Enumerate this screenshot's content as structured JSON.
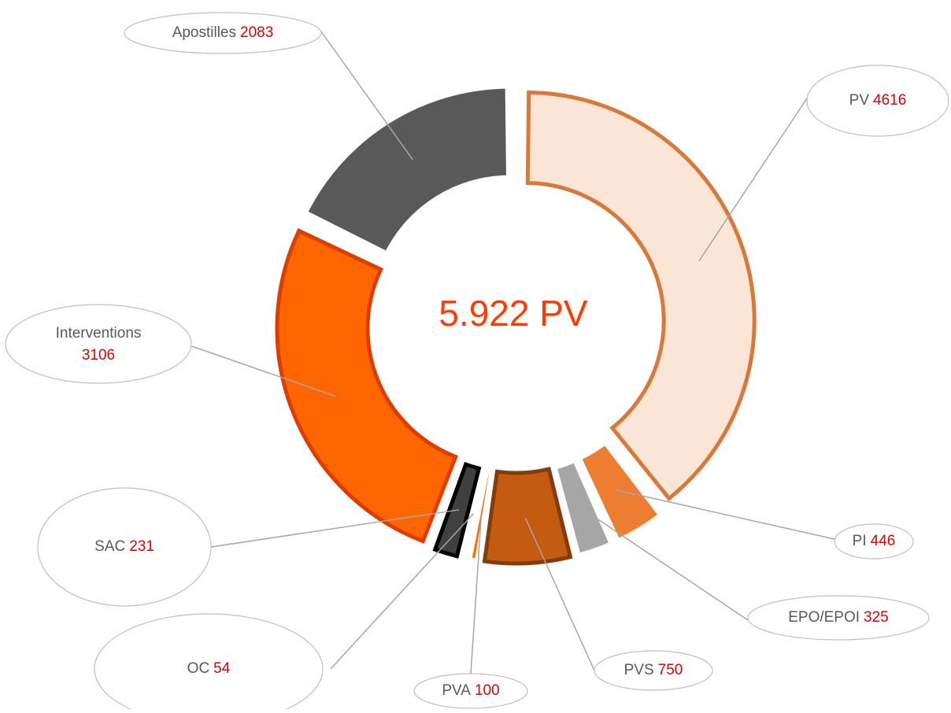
{
  "chart_data": {
    "type": "donut",
    "center_text": "5.922 PV",
    "categories": [
      "PV",
      "PI",
      "EPO/EPOI",
      "PVS",
      "PVA",
      "OC",
      "SAC",
      "Interventions",
      "Apostilles"
    ],
    "values": [
      4616,
      446,
      325,
      750,
      100,
      54,
      231,
      3106,
      2083
    ],
    "colors": [
      "#fbe5d6",
      "#ed7d31",
      "#a6a6a6",
      "#c55a11",
      "#ff6a00",
      "#f4d2c2",
      "#404040",
      "#ff6600",
      "#595959"
    ],
    "stroke_colors": [
      "#d9783a",
      "#ffffff",
      "#ffffff",
      "#843c0c",
      "#ffffff",
      "#ffffff",
      "#000000",
      "#e03c00",
      "#ffffff"
    ]
  }
}
